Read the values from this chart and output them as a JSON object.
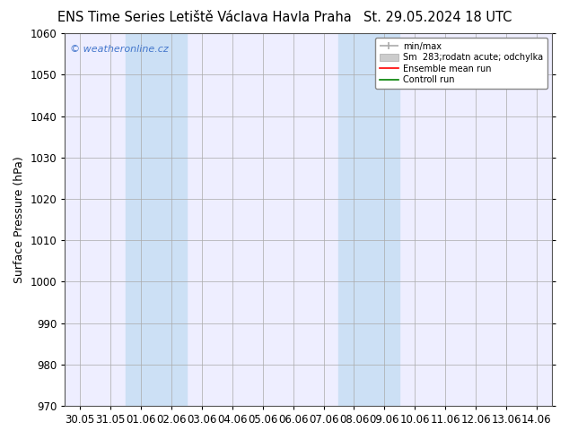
{
  "title": "ENS Time Series Letiště Václava Havla Praha",
  "title_right": "St. 29.05.2024 18 UTC",
  "ylabel": "Surface Pressure (hPa)",
  "ylim": [
    970,
    1060
  ],
  "yticks": [
    970,
    980,
    990,
    1000,
    1010,
    1020,
    1030,
    1040,
    1050,
    1060
  ],
  "xtick_labels": [
    "30.05",
    "31.05",
    "01.06",
    "02.06",
    "03.06",
    "04.06",
    "05.06",
    "06.06",
    "07.06",
    "08.06",
    "09.06",
    "10.06",
    "11.06",
    "12.06",
    "13.06",
    "14.06"
  ],
  "blue_band_1": [
    2,
    4
  ],
  "blue_band_2": [
    9,
    11
  ],
  "watermark": "© weatheronline.cz",
  "watermark_color": "#4477cc",
  "legend_item_1_label": "min/max",
  "legend_item_2_label": "Sm  283;rodatn acute; odchylka",
  "legend_item_3_label": "Ensemble mean run",
  "legend_item_4_label": "Controll run",
  "bg_color": "#ffffff",
  "plot_bg_color": "#eeeeff",
  "band_color": "#cce0f5",
  "grid_color": "#aaaaaa",
  "vline_color": "#aaaaaa",
  "title_fontsize": 10.5,
  "axis_fontsize": 8.5,
  "ylabel_fontsize": 9
}
